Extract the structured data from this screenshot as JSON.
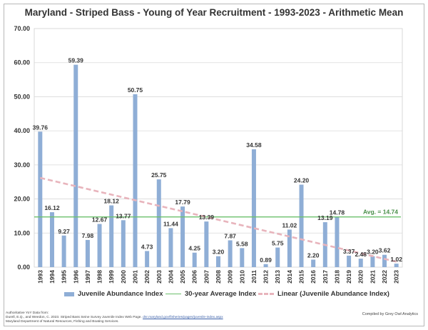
{
  "chart_data": {
    "type": "bar",
    "title": "Maryland - Striped Bass - Young of Year Recruitment - 1993-2023 - Arithmetic Mean",
    "xlabel": "",
    "ylabel": "",
    "ylim": [
      0,
      70
    ],
    "yticks": [
      "0.00",
      "10.00",
      "20.00",
      "30.00",
      "40.00",
      "50.00",
      "60.00",
      "70.00"
    ],
    "categories": [
      "1993",
      "1994",
      "1995",
      "1996",
      "1997",
      "1998",
      "1999",
      "2000",
      "2001",
      "2002",
      "2003",
      "2004",
      "2005",
      "2006",
      "2007",
      "2008",
      "2009",
      "2010",
      "2011",
      "2012",
      "2013",
      "2014",
      "2015",
      "2016",
      "2017",
      "2018",
      "2019",
      "2020",
      "2021",
      "2022",
      "2023"
    ],
    "series": [
      {
        "name": "Juvenile Abundance Index",
        "values": [
          39.76,
          16.12,
          9.27,
          59.39,
          7.98,
          12.67,
          18.12,
          13.77,
          50.75,
          4.73,
          25.75,
          11.44,
          17.79,
          4.25,
          13.39,
          3.2,
          7.87,
          5.58,
          34.58,
          0.89,
          5.75,
          11.02,
          24.2,
          2.2,
          13.19,
          14.78,
          3.37,
          2.48,
          3.2,
          3.62,
          1.02
        ],
        "labels": [
          "39.76",
          "16.12",
          "9.27",
          "59.39",
          "7.98",
          "12.67",
          "18.12",
          "13.77",
          "50.75",
          "4.73",
          "25.75",
          "11.44",
          "17.79",
          "4.25",
          "13.39",
          "3.20",
          "7.87",
          "5.58",
          "34.58",
          "0.89",
          "5.75",
          "11.02",
          "24.20",
          "2.20",
          "13.19",
          "14.78",
          "3.37",
          "2.48",
          "3.20",
          "3.62",
          "1.02"
        ],
        "color": "#8faed6"
      },
      {
        "name": "30-year Average Index",
        "type": "hline",
        "value": 14.74,
        "annotation": "Avg. = 14.74",
        "color": "#6cc06c"
      },
      {
        "name": "Linear (Juvenile Abundance Index)",
        "type": "trendline",
        "start": 26.2,
        "end": 1.6,
        "color": "#e8b4bc"
      }
    ],
    "grid": true,
    "legend": "bottom"
  },
  "footer": {
    "source_heading": "Authoritative YoY Data from:",
    "citation": "Durell, E.Q., and Weedon, C. 2023. Striped Bass Seine Survey Juvenile Index Web Page.",
    "link": "dnr.maryland.gov/fisheries/pages/juvenile-index.aspx",
    "department": "Maryland Department of Natural Resources, Fishing and Boating Services.",
    "compiled_by": "Compiled by Grey Owl Analytics"
  }
}
